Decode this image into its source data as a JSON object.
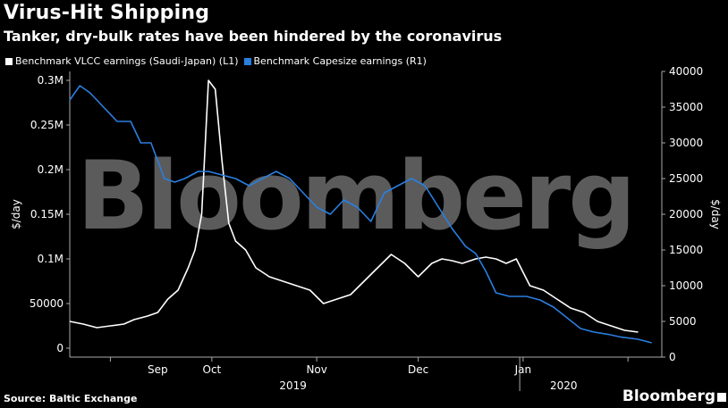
{
  "header": {
    "title": "Virus-Hit Shipping",
    "subtitle": "Tanker, dry-bulk rates have been hindered by the coronavirus"
  },
  "footer": {
    "source": "Source: Baltic Exchange",
    "brand": "Bloomberg"
  },
  "watermark": "Bloomberg",
  "colors": {
    "background": "#000000",
    "vlcc": "#ffffff",
    "capesize": "#2a7fe0",
    "watermark": "#6b6b6b"
  },
  "chart_data": {
    "type": "line",
    "x_start": "2019-08-20",
    "x_end": "2020-02-11",
    "series": [
      {
        "name": "Benchmark VLCC earnings (Saudi-Japan) (L1)",
        "axis": "left",
        "color": "#ffffff",
        "points": [
          [
            "2019-08-20",
            30000
          ],
          [
            "2019-08-24",
            27000
          ],
          [
            "2019-08-28",
            23000
          ],
          [
            "2019-09-01",
            25000
          ],
          [
            "2019-09-05",
            27000
          ],
          [
            "2019-09-08",
            32000
          ],
          [
            "2019-09-12",
            36000
          ],
          [
            "2019-09-15",
            40000
          ],
          [
            "2019-09-18",
            55000
          ],
          [
            "2019-09-21",
            65000
          ],
          [
            "2019-09-24",
            90000
          ],
          [
            "2019-09-26",
            110000
          ],
          [
            "2019-09-28",
            150000
          ],
          [
            "2019-09-30",
            300000
          ],
          [
            "2019-10-02",
            290000
          ],
          [
            "2019-10-04",
            210000
          ],
          [
            "2019-10-06",
            140000
          ],
          [
            "2019-10-08",
            120000
          ],
          [
            "2019-10-11",
            110000
          ],
          [
            "2019-10-14",
            90000
          ],
          [
            "2019-10-18",
            80000
          ],
          [
            "2019-10-22",
            75000
          ],
          [
            "2019-10-26",
            70000
          ],
          [
            "2019-10-30",
            65000
          ],
          [
            "2019-11-03",
            50000
          ],
          [
            "2019-11-07",
            55000
          ],
          [
            "2019-11-11",
            60000
          ],
          [
            "2019-11-15",
            75000
          ],
          [
            "2019-11-19",
            90000
          ],
          [
            "2019-11-23",
            105000
          ],
          [
            "2019-11-27",
            95000
          ],
          [
            "2019-12-01",
            80000
          ],
          [
            "2019-12-05",
            95000
          ],
          [
            "2019-12-08",
            100000
          ],
          [
            "2019-12-11",
            98000
          ],
          [
            "2019-12-14",
            95000
          ],
          [
            "2019-12-18",
            100000
          ],
          [
            "2019-12-21",
            102000
          ],
          [
            "2019-12-24",
            100000
          ],
          [
            "2019-12-27",
            95000
          ],
          [
            "2019-12-30",
            100000
          ],
          [
            "2020-01-03",
            70000
          ],
          [
            "2020-01-07",
            65000
          ],
          [
            "2020-01-11",
            55000
          ],
          [
            "2020-01-15",
            45000
          ],
          [
            "2020-01-19",
            40000
          ],
          [
            "2020-01-23",
            30000
          ],
          [
            "2020-01-27",
            25000
          ],
          [
            "2020-01-31",
            20000
          ],
          [
            "2020-02-04",
            18000
          ]
        ]
      },
      {
        "name": "Benchmark Capesize earnings (R1)",
        "axis": "right",
        "color": "#2a7fe0",
        "points": [
          [
            "2019-08-20",
            36000
          ],
          [
            "2019-08-23",
            38000
          ],
          [
            "2019-08-26",
            37000
          ],
          [
            "2019-08-30",
            35000
          ],
          [
            "2019-09-03",
            33000
          ],
          [
            "2019-09-07",
            33000
          ],
          [
            "2019-09-10",
            30000
          ],
          [
            "2019-09-13",
            30000
          ],
          [
            "2019-09-17",
            25000
          ],
          [
            "2019-09-20",
            24500
          ],
          [
            "2019-09-23",
            25000
          ],
          [
            "2019-09-27",
            26000
          ],
          [
            "2019-09-30",
            26000
          ],
          [
            "2019-10-04",
            25500
          ],
          [
            "2019-10-08",
            25000
          ],
          [
            "2019-10-12",
            24000
          ],
          [
            "2019-10-16",
            25000
          ],
          [
            "2019-10-20",
            26000
          ],
          [
            "2019-10-24",
            25000
          ],
          [
            "2019-10-28",
            23000
          ],
          [
            "2019-11-01",
            21000
          ],
          [
            "2019-11-05",
            20000
          ],
          [
            "2019-11-09",
            22000
          ],
          [
            "2019-11-13",
            21000
          ],
          [
            "2019-11-17",
            19000
          ],
          [
            "2019-11-21",
            23000
          ],
          [
            "2019-11-25",
            24000
          ],
          [
            "2019-11-29",
            25000
          ],
          [
            "2019-12-03",
            24000
          ],
          [
            "2019-12-07",
            21000
          ],
          [
            "2019-12-11",
            18000
          ],
          [
            "2019-12-15",
            15500
          ],
          [
            "2019-12-18",
            14500
          ],
          [
            "2019-12-21",
            12000
          ],
          [
            "2019-12-24",
            9000
          ],
          [
            "2019-12-28",
            8500
          ],
          [
            "2020-01-02",
            8500
          ],
          [
            "2020-01-06",
            8000
          ],
          [
            "2020-01-10",
            7000
          ],
          [
            "2020-01-14",
            5500
          ],
          [
            "2020-01-18",
            4000
          ],
          [
            "2020-01-22",
            3500
          ],
          [
            "2020-01-26",
            3200
          ],
          [
            "2020-01-30",
            2800
          ],
          [
            "2020-02-04",
            2500
          ],
          [
            "2020-02-08",
            2000
          ]
        ]
      }
    ],
    "left_axis": {
      "label": "$/day",
      "ylim": [
        -10000,
        310000
      ],
      "ticks": [
        0,
        50000,
        100000,
        150000,
        200000,
        250000,
        300000
      ],
      "tick_labels": [
        "0",
        "50000",
        "0.1M",
        "0.15M",
        "0.2M",
        "0.25M",
        "0.3M"
      ]
    },
    "right_axis": {
      "label": "$/day",
      "ylim": [
        0,
        40000
      ],
      "ticks": [
        0,
        5000,
        10000,
        15000,
        20000,
        25000,
        30000,
        35000,
        40000
      ],
      "tick_labels": [
        "0",
        "5000",
        "10000",
        "15000",
        "20000",
        "25000",
        "30000",
        "35000",
        "40000"
      ]
    },
    "x_ticks": [
      {
        "label": "Sep",
        "date": "2019-09-15"
      },
      {
        "label": "Oct",
        "date": "2019-10-01"
      },
      {
        "label": "Nov",
        "date": "2019-11-01"
      },
      {
        "label": "Dec",
        "date": "2019-12-01"
      },
      {
        "label": "Jan",
        "date": "2020-01-01"
      }
    ],
    "month_boundaries": [
      "2019-09-01",
      "2019-10-01",
      "2019-11-01",
      "2019-12-01",
      "2020-01-01",
      "2020-02-01"
    ],
    "year_labels": [
      {
        "label": "2019",
        "date": "2019-10-25"
      },
      {
        "label": "2020",
        "date": "2020-01-13"
      }
    ],
    "year_boundary": "2019-12-31",
    "grid": false,
    "legend_position": "top-left"
  }
}
